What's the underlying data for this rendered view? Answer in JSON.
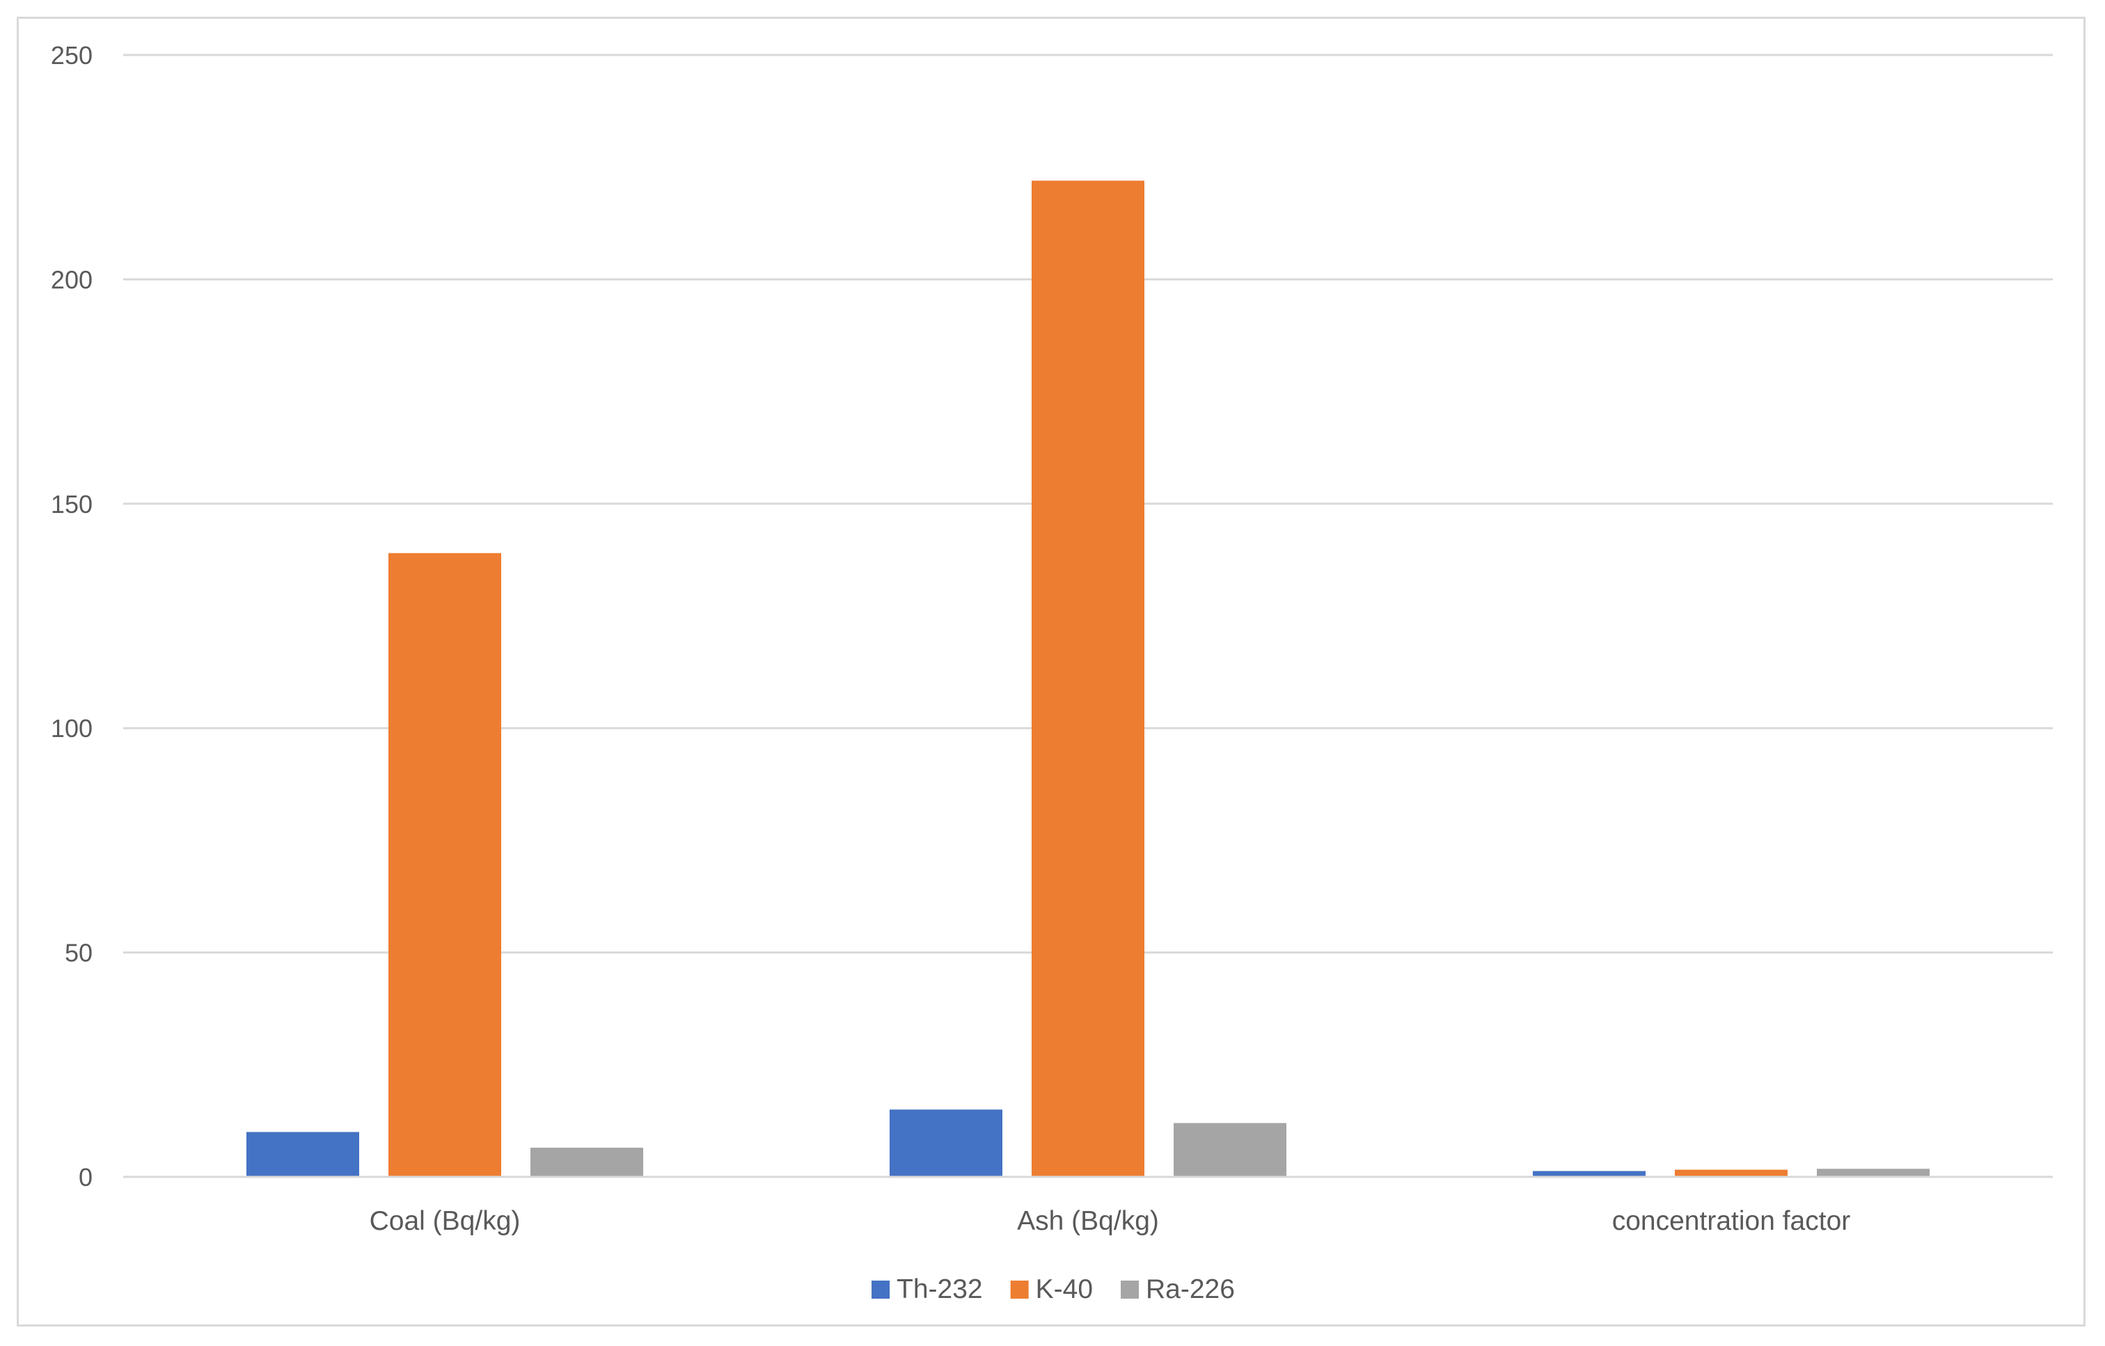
{
  "chart_data": {
    "type": "bar",
    "categories": [
      "Coal (Bq/kg)",
      "Ash (Bq/kg)",
      "concentration factor"
    ],
    "series": [
      {
        "name": "Th-232",
        "color": "#4472c4",
        "values": [
          10,
          15,
          1.3
        ]
      },
      {
        "name": "K-40",
        "color": "#ed7d31",
        "values": [
          139,
          222,
          1.6
        ]
      },
      {
        "name": "Ra-226",
        "color": "#a5a5a5",
        "values": [
          6.5,
          12,
          1.8
        ]
      }
    ],
    "ylim": [
      0,
      250
    ],
    "yticks": [
      0,
      50,
      100,
      150,
      200,
      250
    ],
    "grid": true,
    "legend": "bottom"
  }
}
